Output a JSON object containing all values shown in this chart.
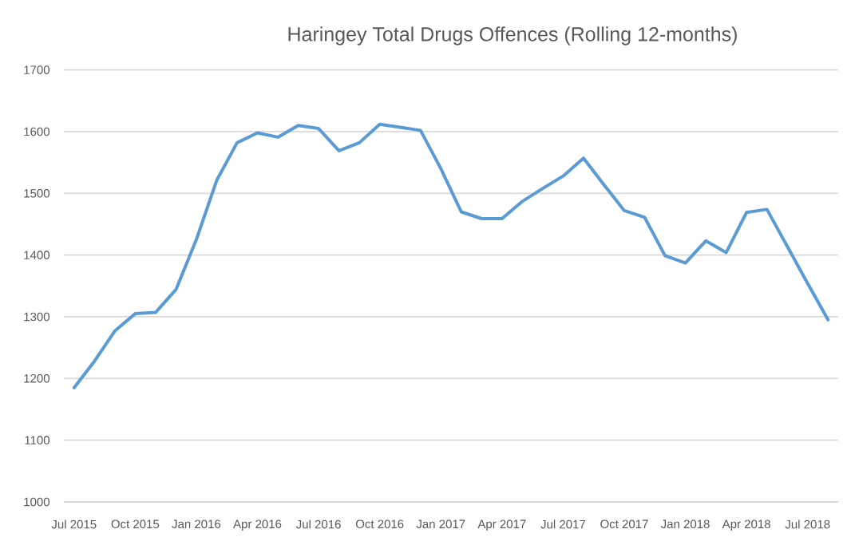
{
  "chart_data": {
    "type": "line",
    "title": "Haringey Total Drugs Offences (Rolling 12-months)",
    "categories": [
      "Jul 2015",
      null,
      null,
      "Oct 2015",
      null,
      null,
      "Jan 2016",
      null,
      null,
      "Apr 2016",
      null,
      null,
      "Jul 2016",
      null,
      null,
      "Oct 2016",
      null,
      null,
      "Jan 2017",
      null,
      null,
      "Apr 2017",
      null,
      null,
      "Jul 2017",
      null,
      null,
      "Oct 2017",
      null,
      null,
      "Jan 2018",
      null,
      null,
      "Apr 2018",
      null,
      null,
      "Jul 2018",
      null
    ],
    "series": [
      {
        "color": "#5b9bd5",
        "values": [
          1185,
          1228,
          1277,
          1305,
          1307,
          1344,
          1425,
          1521,
          1582,
          1598,
          1591,
          1610,
          1605,
          1569,
          1582,
          1612,
          1607,
          1602,
          1540,
          1470,
          1459,
          1459,
          1487,
          1508,
          1528,
          1557,
          1514,
          1472,
          1461,
          1399,
          1387,
          1423,
          1404,
          1469,
          1474,
          1414,
          1354,
          1295
        ]
      }
    ],
    "ylim": [
      1000,
      1700
    ],
    "yticks": [
      1000,
      1100,
      1200,
      1300,
      1400,
      1500,
      1600,
      1700
    ],
    "grid": "y",
    "marker": "none",
    "line_style": "solid"
  }
}
